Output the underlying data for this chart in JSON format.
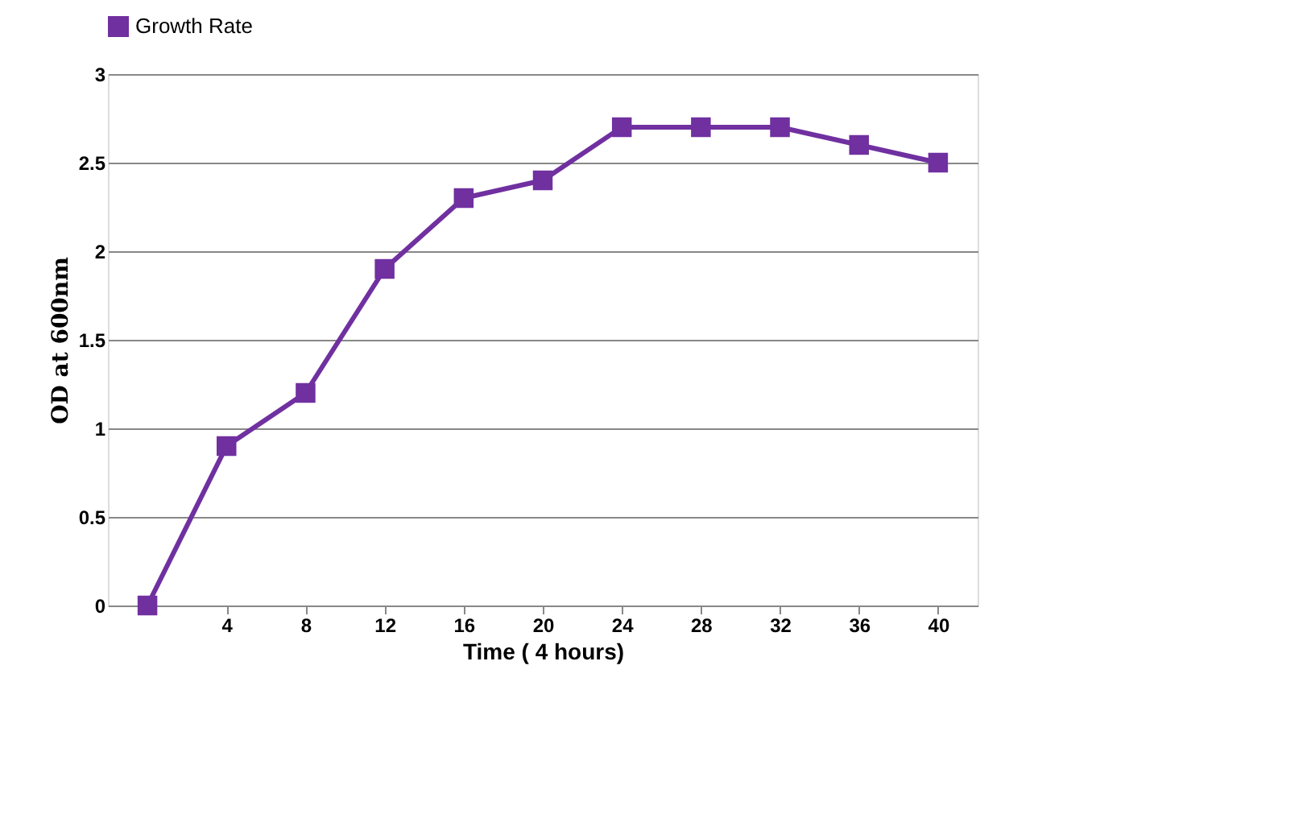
{
  "chart_data": {
    "type": "line",
    "xlabel": "Time ( 4 hours)",
    "ylabel": "OD at 600nm",
    "categories": [
      null,
      "4",
      "8",
      "12",
      "16",
      "20",
      "24",
      "28",
      "32",
      "36",
      "40"
    ],
    "series": [
      {
        "name": "Growth Rate",
        "color": "#7030a0",
        "values": [
          0,
          0.9,
          1.2,
          1.9,
          2.3,
          2.4,
          2.7,
          2.7,
          2.7,
          2.6,
          2.5
        ]
      }
    ],
    "ylim": [
      0,
      3
    ],
    "yticks": [
      0,
      0.5,
      1,
      1.5,
      2,
      2.5,
      3
    ],
    "grid": "y",
    "legend": "top",
    "marker": "square",
    "line_style": "solid"
  }
}
